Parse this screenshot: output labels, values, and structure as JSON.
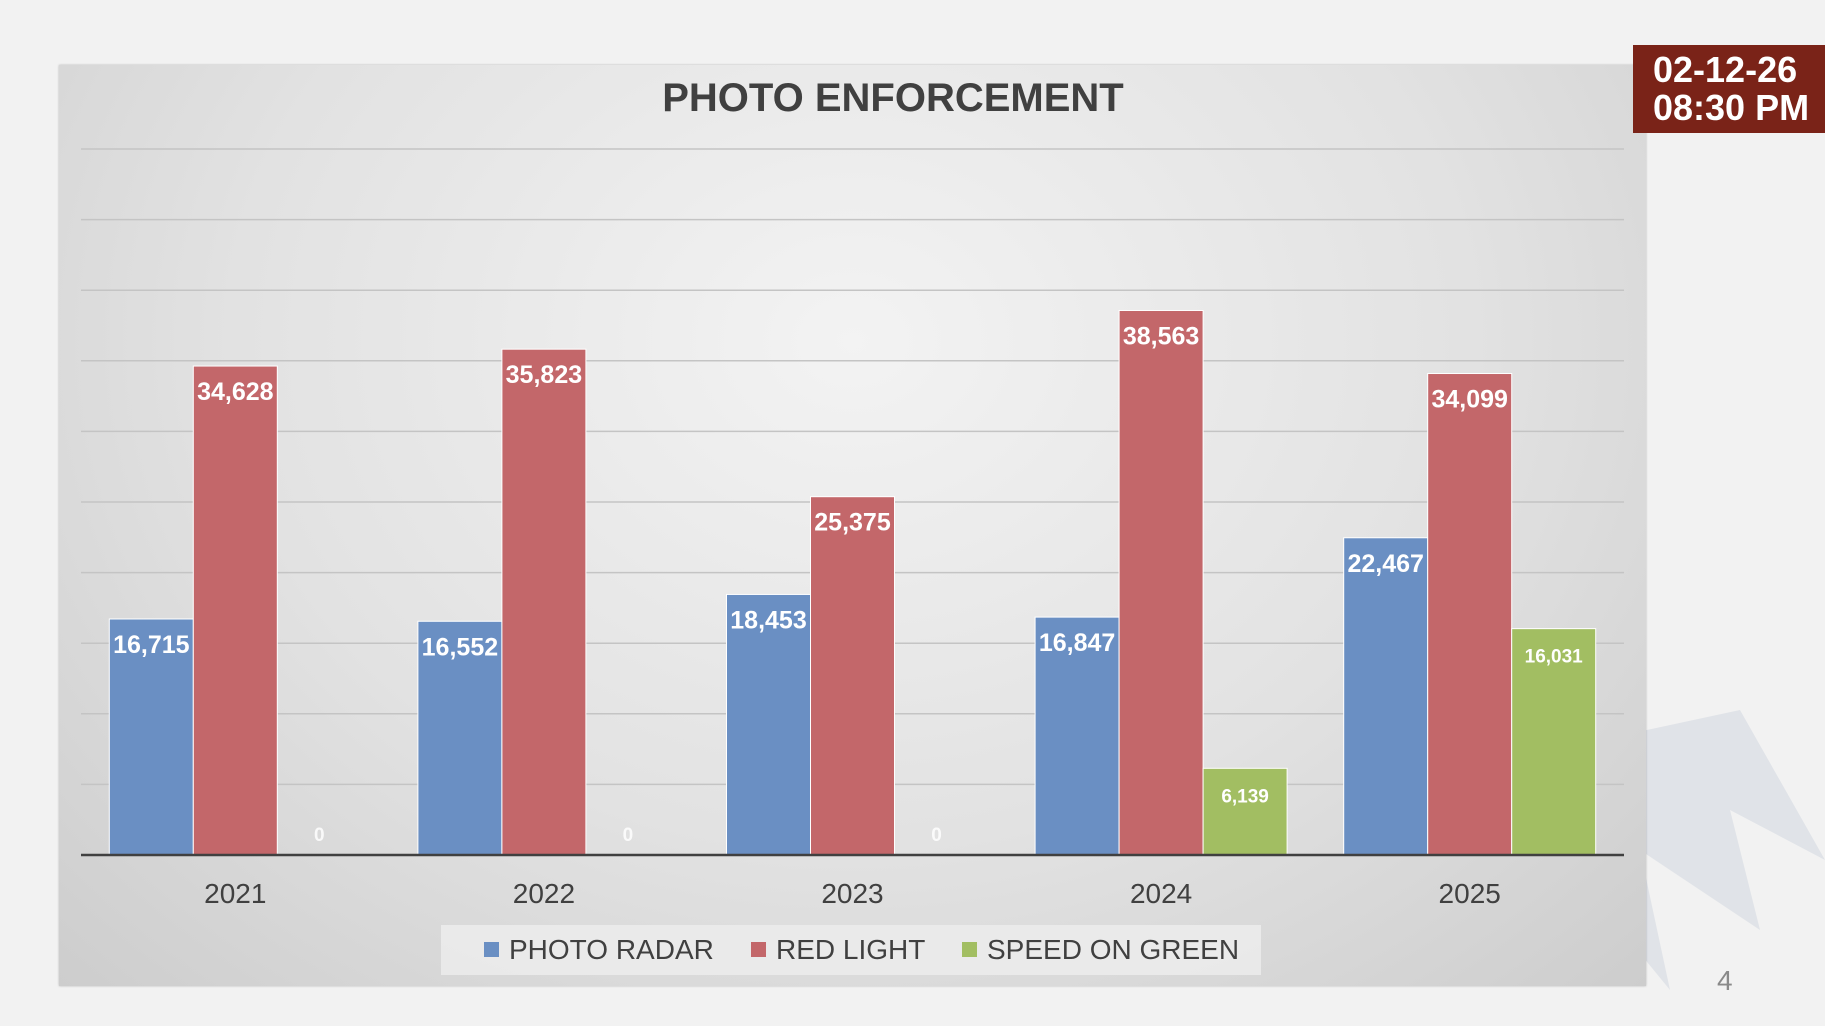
{
  "timestamp": {
    "date": "02-12-26",
    "time": "08:30 PM"
  },
  "page_number": "4",
  "colors": {
    "photo_radar": "#6a8fc3",
    "red_light": "#c3676a",
    "speed_on_green": "#a2be62",
    "timestamp_bg": "#7a2318"
  },
  "chart_data": {
    "type": "bar",
    "title": "PHOTO ENFORCEMENT",
    "xlabel": "",
    "ylabel": "",
    "categories": [
      "2021",
      "2022",
      "2023",
      "2024",
      "2025"
    ],
    "series": [
      {
        "name": "PHOTO RADAR",
        "values": [
          16715,
          16552,
          18453,
          16847,
          22467
        ],
        "labels": [
          "16,715",
          "16,552",
          "18,453",
          "16,847",
          "22,467"
        ]
      },
      {
        "name": "RED LIGHT",
        "values": [
          34628,
          35823,
          25375,
          38563,
          34099
        ],
        "labels": [
          "34,628",
          "35,823",
          "25,375",
          "38,563",
          "34,099"
        ]
      },
      {
        "name": "SPEED ON GREEN",
        "values": [
          0,
          0,
          0,
          6139,
          16031
        ],
        "labels": [
          "0",
          "0",
          "0",
          "6,139",
          "16,031"
        ]
      }
    ],
    "ylim": [
      0,
      50000
    ],
    "grid": true,
    "legend_position": "bottom"
  }
}
